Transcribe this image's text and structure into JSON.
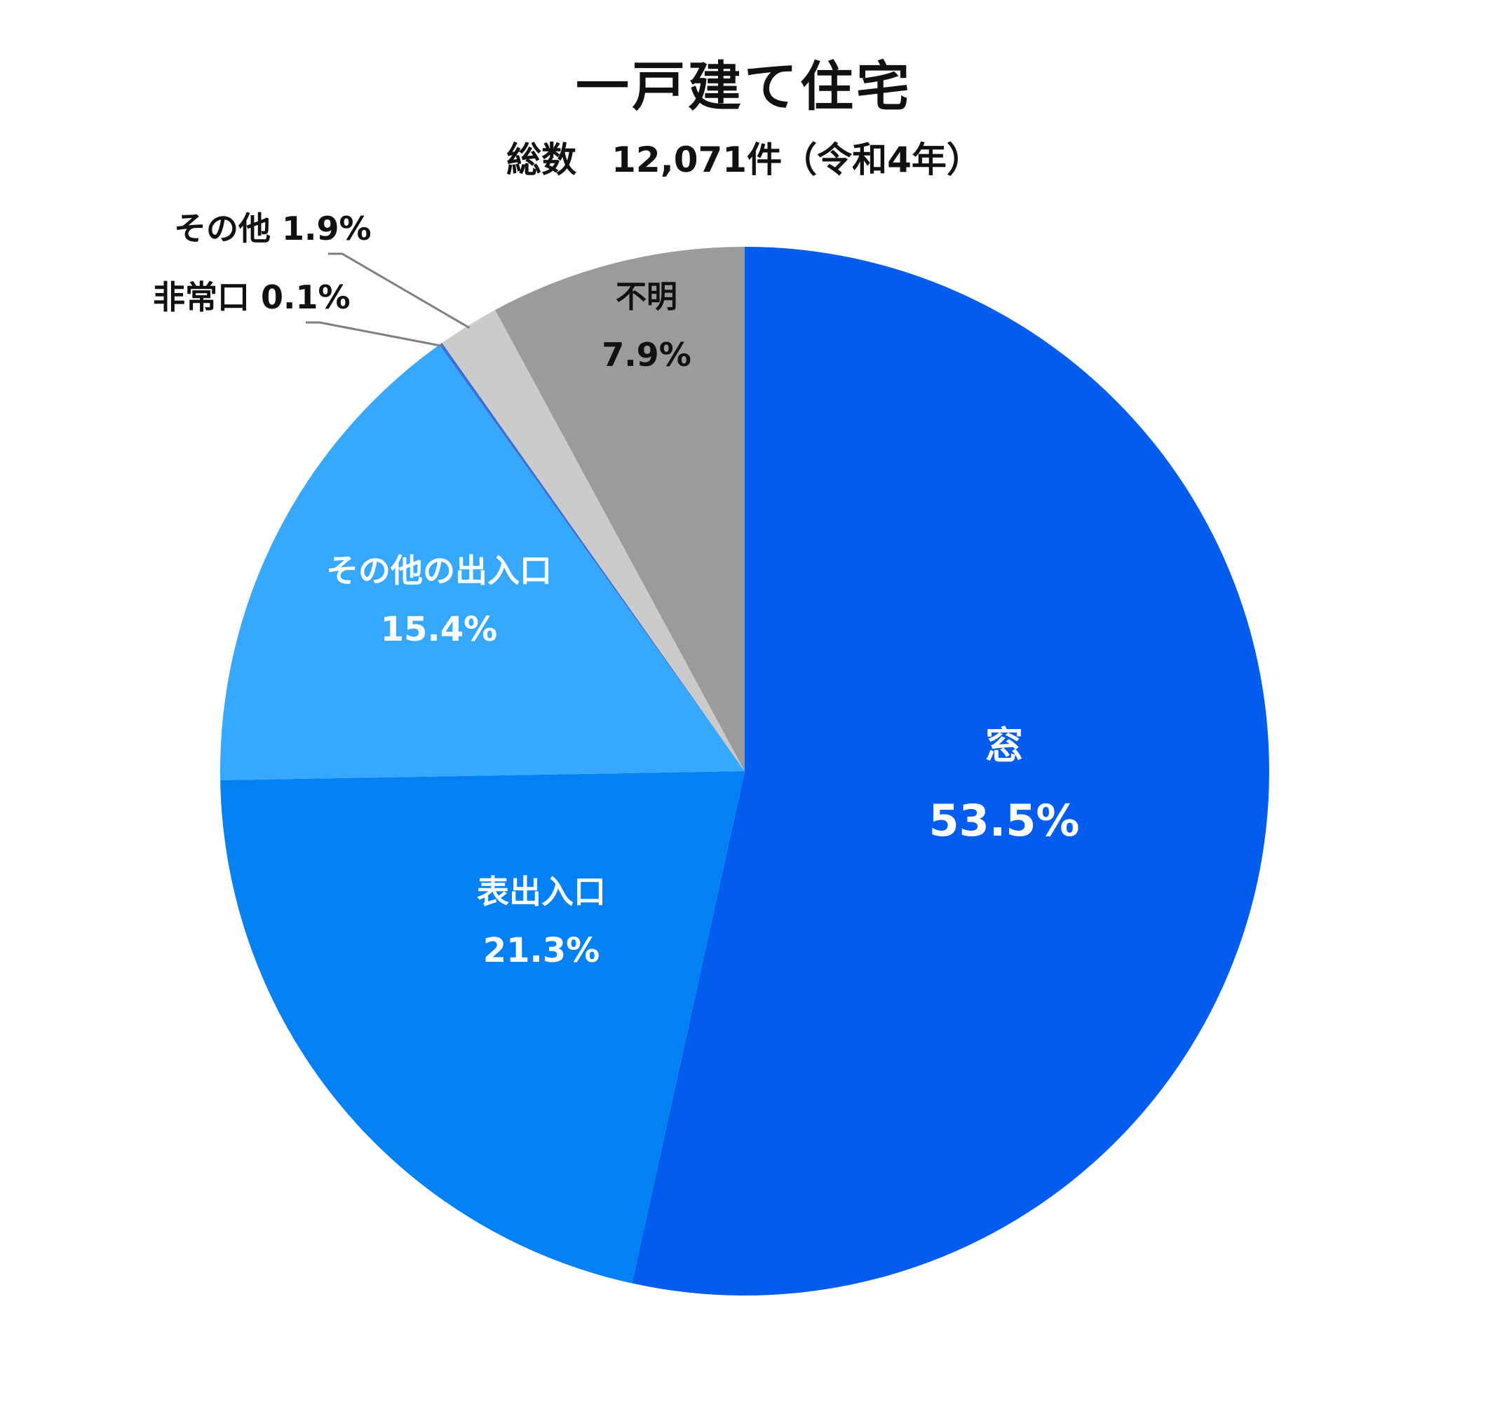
{
  "chart_data": {
    "type": "pie",
    "title": "一戸建て住宅",
    "subtitle": "総数　12,071件（令和4年）",
    "start_angle_deg": 0,
    "direction": "clockwise",
    "slices": [
      {
        "name": "窓",
        "value": 53.5,
        "value_label": "53.5%",
        "color": "#025CEE",
        "label_style": "inside-white"
      },
      {
        "name": "表出入口",
        "value": 21.3,
        "value_label": "21.3%",
        "color": "#0380F2",
        "label_style": "inside-white"
      },
      {
        "name": "その他の出入口",
        "value": 15.4,
        "value_label": "15.4%",
        "color": "#36A8FF",
        "label_style": "inside-white"
      },
      {
        "name": "非常口",
        "value": 0.1,
        "value_label": "0.1%",
        "color": "#3A6FD6",
        "label_style": "outside-leader"
      },
      {
        "name": "その他",
        "value": 1.9,
        "value_label": "1.9%",
        "color": "#CBCBCB",
        "label_style": "outside-leader"
      },
      {
        "name": "不明",
        "value": 7.9,
        "value_label": "7.9%",
        "color": "#9B9B9B",
        "label_style": "inside-dark"
      }
    ]
  }
}
